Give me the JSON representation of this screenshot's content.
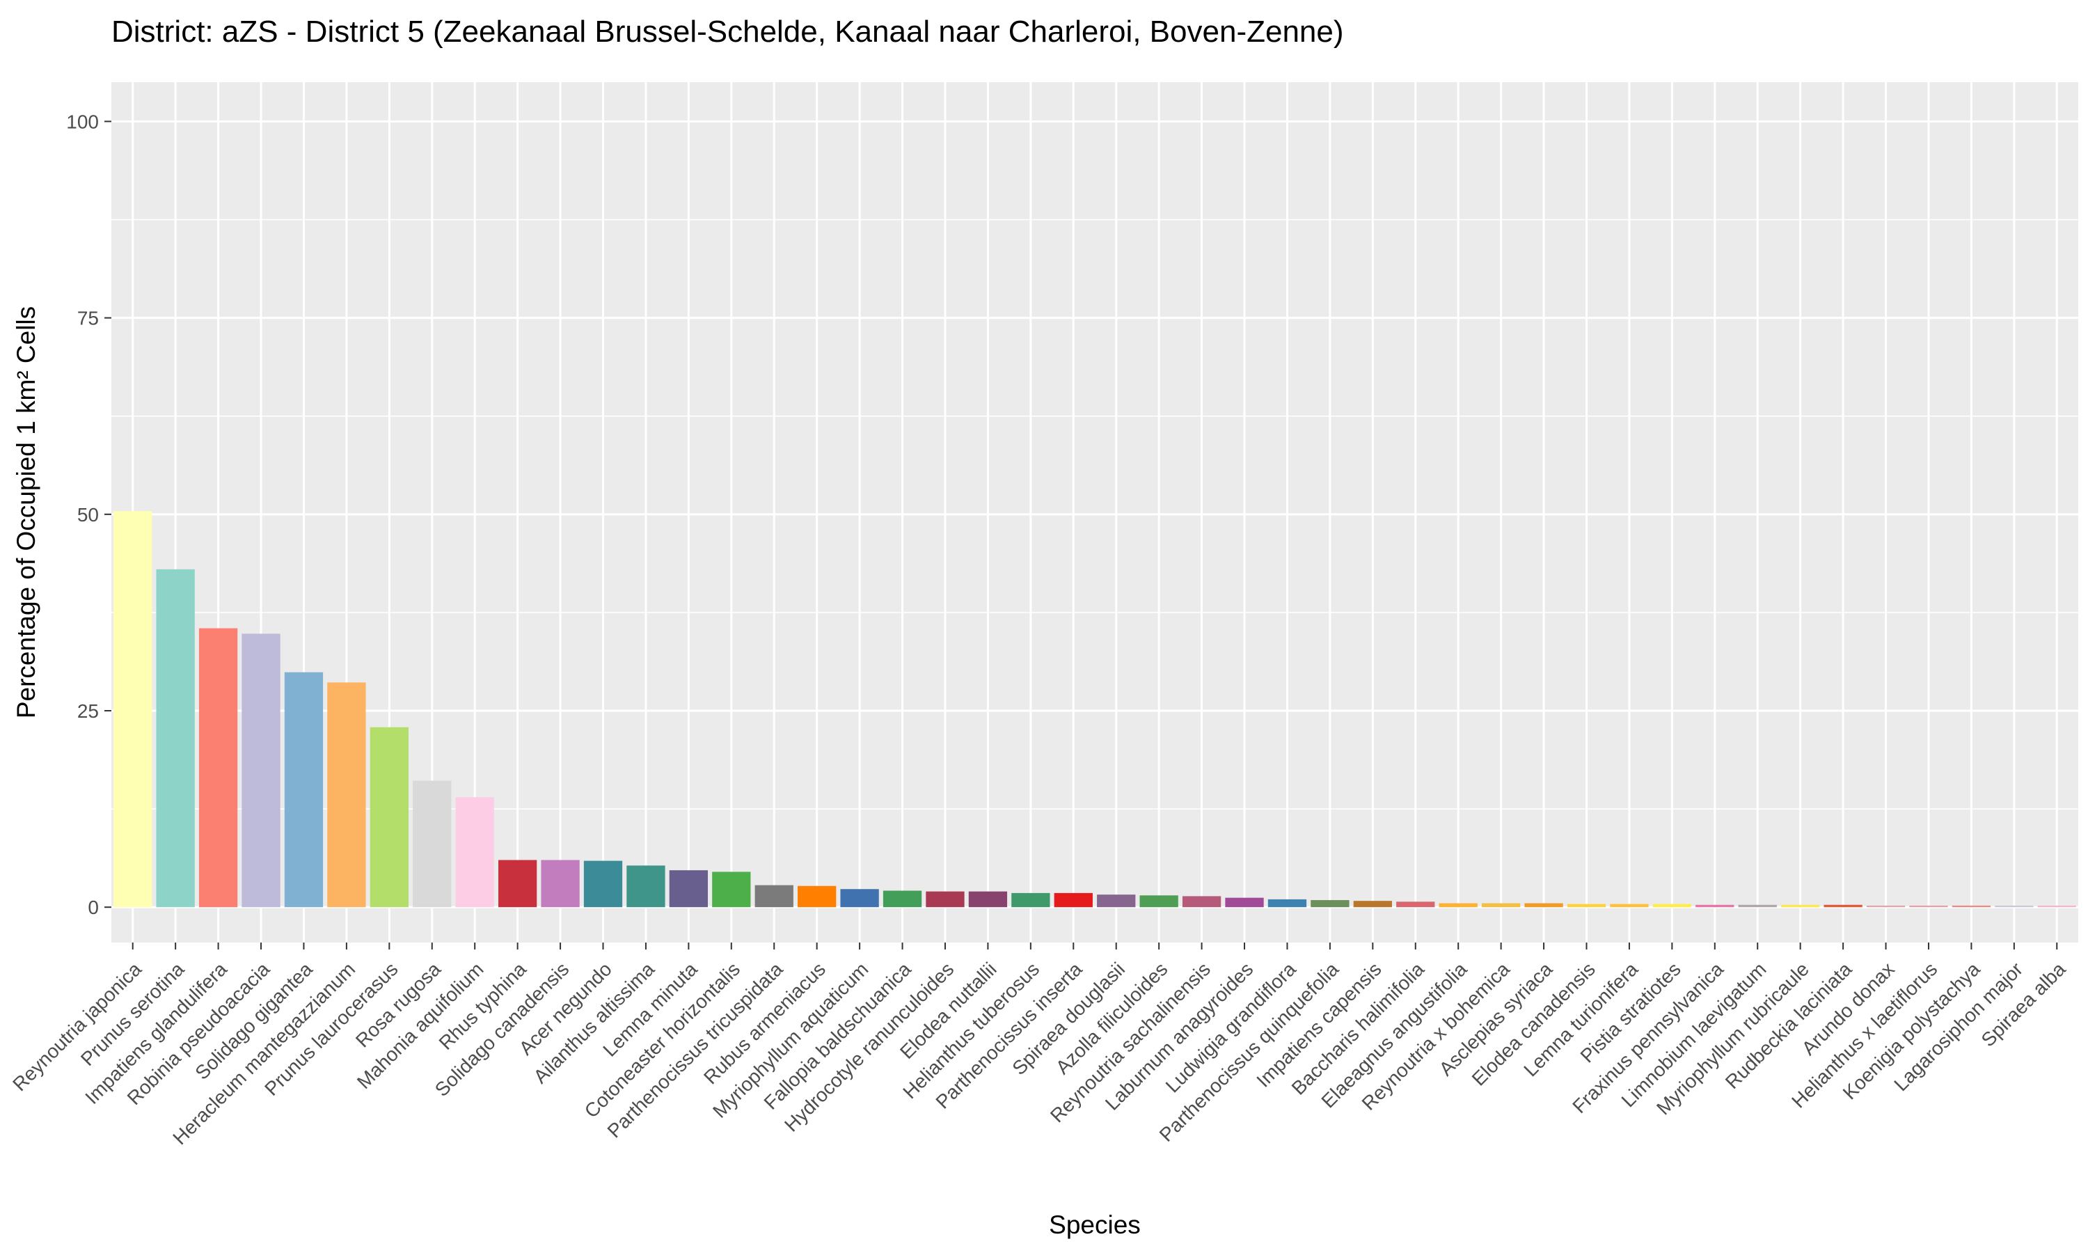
{
  "chart_data": {
    "type": "bar",
    "title": "District: aZS - District 5 (Zeekanaal Brussel-Schelde, Kanaal naar Charleroi, Boven-Zenne)",
    "xlabel": "Species",
    "ylabel": "Percentage of Occupied 1 km² Cells",
    "ylim": [
      -4.5,
      105
    ],
    "yticks": [
      0,
      25,
      50,
      75,
      100
    ],
    "grid": true,
    "legend": "none",
    "panel_background": "#ebebeb",
    "grid_color": "#ffffff",
    "categories": [
      "Reynoutria japonica",
      "Prunus serotina",
      "Impatiens glandulifera",
      "Robinia pseudoacacia",
      "Solidago gigantea",
      "Heracleum mantegazzianum",
      "Prunus laurocerasus",
      "Rosa rugosa",
      "Mahonia aquifolium",
      "Rhus typhina",
      "Solidago canadensis",
      "Acer negundo",
      "Ailanthus altissima",
      "Lemna minuta",
      "Cotoneaster horizontalis",
      "Parthenocissus tricuspidata",
      "Rubus armeniacus",
      "Myriophyllum aquaticum",
      "Fallopia baldschuanica",
      "Hydrocotyle ranunculoides",
      "Elodea nuttallii",
      "Helianthus tuberosus",
      "Parthenocissus inserta",
      "Spiraea douglasii",
      "Azolla filiculoides",
      "Reynoutria sachalinensis",
      "Laburnum anagyroides",
      "Ludwigia grandiflora",
      "Parthenocissus quinquefolia",
      "Impatiens capensis",
      "Baccharis halimifolia",
      "Elaeagnus angustifolia",
      "Reynoutria x bohemica",
      "Asclepias syriaca",
      "Elodea canadensis",
      "Lemna turionifera",
      "Pistia stratiotes",
      "Fraxinus pennsylvanica",
      "Limnobium laevigatum",
      "Myriophyllum rubricaule",
      "Rudbeckia laciniata",
      "Arundo donax",
      "Helianthus x laetiflorus",
      "Koenigia polystachya",
      "Lagarosiphon major",
      "Spiraea alba"
    ],
    "values": [
      50.4,
      43.0,
      35.5,
      34.8,
      29.9,
      28.6,
      22.9,
      16.1,
      14.0,
      6.0,
      6.0,
      5.9,
      5.3,
      4.7,
      4.5,
      2.8,
      2.7,
      2.3,
      2.1,
      2.0,
      2.0,
      1.8,
      1.8,
      1.6,
      1.5,
      1.4,
      1.2,
      1.0,
      0.9,
      0.8,
      0.7,
      0.5,
      0.5,
      0.5,
      0.4,
      0.4,
      0.4,
      0.3,
      0.3,
      0.3,
      0.3,
      0.2,
      0.2,
      0.2,
      0.2,
      0.2
    ],
    "colors": [
      "#ffffb3",
      "#8dd3c7",
      "#fb8072",
      "#bebada",
      "#80b1d3",
      "#fdb462",
      "#b3de69",
      "#d9d9d9",
      "#fccde5",
      "#c7303c",
      "#c17dbe",
      "#3c8b98",
      "#3f958a",
      "#685f8f",
      "#4daf4a",
      "#7b7b7b",
      "#ff7f00",
      "#3f72ae",
      "#429e58",
      "#a83a53",
      "#87436e",
      "#3f9a6b",
      "#e41a1c",
      "#86658f",
      "#4f9e55",
      "#b55a7a",
      "#a14a98",
      "#3d82b0",
      "#6d8f5c",
      "#b9772c",
      "#d9666e",
      "#ffb232",
      "#f2bf40",
      "#f29a24",
      "#ffd23d",
      "#ffc13c",
      "#ffec48",
      "#e874a8",
      "#b1a6a8",
      "#ffe84f",
      "#e35a3b",
      "#e3a3a8",
      "#e8a0a8",
      "#ea8a80",
      "#c7c7d6",
      "#f3b6cf"
    ]
  }
}
